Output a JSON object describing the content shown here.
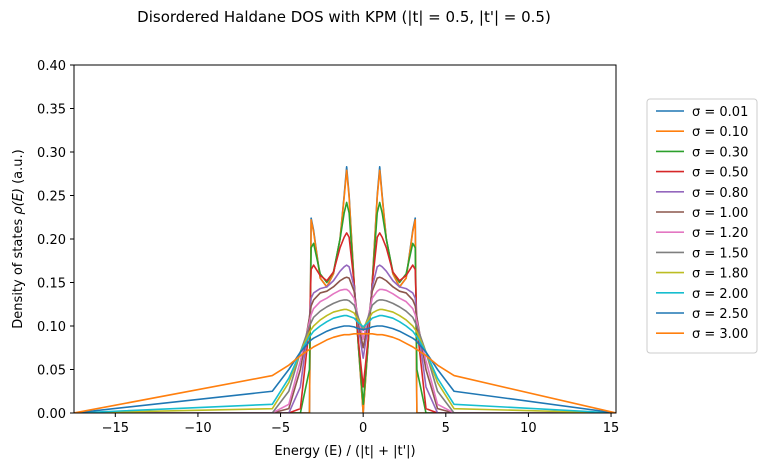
{
  "chart_data": {
    "type": "line",
    "title": "Disordered Haldane DOS with KPM (|t| = 0.5, |t'| = 0.5)",
    "xlabel": "Energy (E) / (|t| + |t'|)",
    "ylabel_prefix": "Density of states ",
    "ylabel_math": "ρ(E)",
    "ylabel_suffix": " (a.u.)",
    "xlim": [
      -17.5,
      15.3
    ],
    "ylim": [
      0.0,
      0.4
    ],
    "xticks": [
      -15,
      -10,
      -5,
      0,
      5,
      10,
      15
    ],
    "xtick_labels": [
      "−15",
      "−10",
      "−5",
      "0",
      "5",
      "10",
      "15"
    ],
    "yticks": [
      0.0,
      0.05,
      0.1,
      0.15,
      0.2,
      0.25,
      0.3,
      0.35,
      0.4
    ],
    "ytick_labels": [
      "0.00",
      "0.05",
      "0.10",
      "0.15",
      "0.20",
      "0.25",
      "0.30",
      "0.35",
      "0.40"
    ],
    "grid": false,
    "legend_position": "outside-right",
    "x": [
      -17.5,
      -5.5,
      -4.5,
      -3.8,
      -3.25,
      -3.15,
      -3.0,
      -2.6,
      -2.2,
      -1.8,
      -1.4,
      -1.15,
      -1.0,
      -0.85,
      -0.55,
      -0.3,
      0.0,
      0.3,
      0.55,
      0.85,
      1.0,
      1.15,
      1.4,
      1.8,
      2.2,
      2.6,
      3.0,
      3.15,
      3.25,
      3.8,
      4.5,
      5.5,
      15.3
    ],
    "series": [
      {
        "name": "σ = 0.01",
        "color": "#1f77b4",
        "values": [
          0,
          0,
          0,
          0,
          0,
          0.224,
          0.21,
          0.155,
          0.145,
          0.16,
          0.2,
          0.25,
          0.283,
          0.25,
          0.15,
          0.08,
          0,
          0.08,
          0.15,
          0.25,
          0.283,
          0.25,
          0.2,
          0.16,
          0.145,
          0.155,
          0.21,
          0.224,
          0,
          0,
          0,
          0,
          0
        ]
      },
      {
        "name": "σ = 0.10",
        "color": "#ff7f0e",
        "values": [
          0,
          0,
          0,
          0,
          0,
          0.222,
          0.208,
          0.155,
          0.145,
          0.16,
          0.2,
          0.248,
          0.279,
          0.248,
          0.15,
          0.08,
          0,
          0.08,
          0.15,
          0.248,
          0.279,
          0.248,
          0.2,
          0.16,
          0.145,
          0.155,
          0.208,
          0.222,
          0,
          0,
          0,
          0,
          0
        ]
      },
      {
        "name": "σ = 0.30",
        "color": "#2ca02c",
        "values": [
          0,
          0,
          0,
          0,
          0.05,
          0.19,
          0.195,
          0.16,
          0.15,
          0.162,
          0.2,
          0.23,
          0.242,
          0.23,
          0.15,
          0.08,
          0.01,
          0.08,
          0.15,
          0.23,
          0.242,
          0.23,
          0.2,
          0.162,
          0.15,
          0.16,
          0.195,
          0.19,
          0.05,
          0,
          0,
          0,
          0
        ]
      },
      {
        "name": "σ = 0.50",
        "color": "#d62728",
        "values": [
          0,
          0,
          0,
          0.005,
          0.1,
          0.165,
          0.17,
          0.158,
          0.152,
          0.162,
          0.19,
          0.202,
          0.207,
          0.202,
          0.15,
          0.085,
          0.03,
          0.085,
          0.15,
          0.202,
          0.207,
          0.202,
          0.19,
          0.162,
          0.152,
          0.158,
          0.17,
          0.165,
          0.1,
          0.005,
          0,
          0,
          0
        ]
      },
      {
        "name": "σ = 0.80",
        "color": "#9467bd",
        "values": [
          0,
          0,
          0,
          0.03,
          0.11,
          0.132,
          0.138,
          0.143,
          0.145,
          0.152,
          0.163,
          0.168,
          0.17,
          0.168,
          0.145,
          0.1,
          0.063,
          0.1,
          0.145,
          0.168,
          0.17,
          0.168,
          0.163,
          0.152,
          0.145,
          0.143,
          0.138,
          0.132,
          0.11,
          0.03,
          0,
          0,
          0
        ]
      },
      {
        "name": "σ = 1.00",
        "color": "#8c564b",
        "values": [
          0,
          0,
          0.005,
          0.05,
          0.11,
          0.123,
          0.13,
          0.138,
          0.14,
          0.145,
          0.152,
          0.155,
          0.156,
          0.155,
          0.14,
          0.105,
          0.075,
          0.105,
          0.14,
          0.155,
          0.156,
          0.155,
          0.152,
          0.145,
          0.14,
          0.138,
          0.13,
          0.123,
          0.11,
          0.05,
          0.005,
          0,
          0
        ]
      },
      {
        "name": "σ = 1.20",
        "color": "#e377c2",
        "values": [
          0,
          0,
          0.01,
          0.06,
          0.105,
          0.113,
          0.12,
          0.128,
          0.132,
          0.137,
          0.141,
          0.142,
          0.142,
          0.14,
          0.132,
          0.11,
          0.085,
          0.11,
          0.132,
          0.14,
          0.142,
          0.142,
          0.141,
          0.137,
          0.132,
          0.128,
          0.12,
          0.113,
          0.105,
          0.06,
          0.01,
          0,
          0
        ]
      },
      {
        "name": "σ = 1.50",
        "color": "#7f7f7f",
        "values": [
          0,
          0,
          0.025,
          0.07,
          0.1,
          0.104,
          0.11,
          0.117,
          0.122,
          0.126,
          0.129,
          0.13,
          0.13,
          0.129,
          0.124,
          0.11,
          0.095,
          0.11,
          0.124,
          0.129,
          0.13,
          0.13,
          0.129,
          0.126,
          0.122,
          0.117,
          0.11,
          0.104,
          0.1,
          0.07,
          0.025,
          0,
          0
        ]
      },
      {
        "name": "σ = 1.80",
        "color": "#bcbd22",
        "values": [
          0,
          0.005,
          0.035,
          0.07,
          0.093,
          0.096,
          0.1,
          0.107,
          0.112,
          0.116,
          0.118,
          0.119,
          0.119,
          0.118,
          0.115,
          0.107,
          0.098,
          0.107,
          0.115,
          0.118,
          0.119,
          0.119,
          0.118,
          0.116,
          0.112,
          0.107,
          0.1,
          0.096,
          0.093,
          0.07,
          0.035,
          0.005,
          0
        ]
      },
      {
        "name": "σ = 2.00",
        "color": "#17becf",
        "values": [
          0,
          0.01,
          0.04,
          0.07,
          0.088,
          0.09,
          0.094,
          0.1,
          0.105,
          0.109,
          0.111,
          0.112,
          0.112,
          0.111,
          0.109,
          0.104,
          0.099,
          0.104,
          0.109,
          0.111,
          0.112,
          0.112,
          0.111,
          0.109,
          0.105,
          0.1,
          0.094,
          0.09,
          0.088,
          0.07,
          0.04,
          0.01,
          0
        ]
      },
      {
        "name": "σ = 2.50",
        "color": "#1f77b4",
        "values": [
          0,
          0.025,
          0.05,
          0.07,
          0.082,
          0.084,
          0.086,
          0.09,
          0.094,
          0.097,
          0.099,
          0.1,
          0.1,
          0.1,
          0.099,
          0.097,
          0.096,
          0.097,
          0.099,
          0.1,
          0.1,
          0.1,
          0.099,
          0.097,
          0.094,
          0.09,
          0.086,
          0.084,
          0.082,
          0.07,
          0.05,
          0.025,
          0
        ]
      },
      {
        "name": "σ = 3.00",
        "color": "#ff7f0e",
        "values": [
          0,
          0.043,
          0.055,
          0.066,
          0.073,
          0.074,
          0.076,
          0.08,
          0.084,
          0.087,
          0.089,
          0.09,
          0.09,
          0.09,
          0.091,
          0.091,
          0.091,
          0.091,
          0.091,
          0.09,
          0.09,
          0.09,
          0.089,
          0.087,
          0.084,
          0.08,
          0.076,
          0.074,
          0.073,
          0.066,
          0.055,
          0.043,
          0
        ]
      }
    ]
  }
}
